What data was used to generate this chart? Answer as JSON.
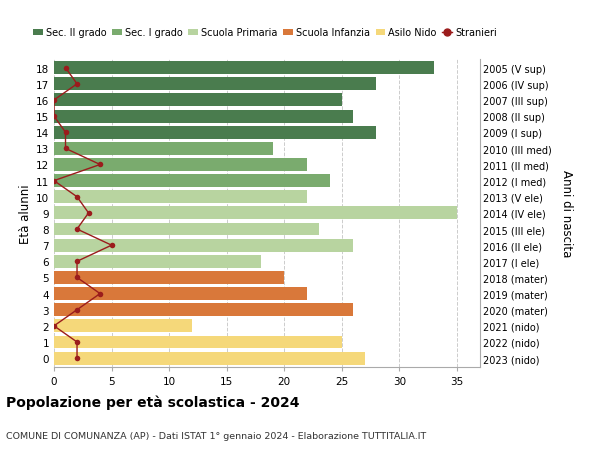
{
  "ages": [
    18,
    17,
    16,
    15,
    14,
    13,
    12,
    11,
    10,
    9,
    8,
    7,
    6,
    5,
    4,
    3,
    2,
    1,
    0
  ],
  "right_labels": [
    "2005 (V sup)",
    "2006 (IV sup)",
    "2007 (III sup)",
    "2008 (II sup)",
    "2009 (I sup)",
    "2010 (III med)",
    "2011 (II med)",
    "2012 (I med)",
    "2013 (V ele)",
    "2014 (IV ele)",
    "2015 (III ele)",
    "2016 (II ele)",
    "2017 (I ele)",
    "2018 (mater)",
    "2019 (mater)",
    "2020 (mater)",
    "2021 (nido)",
    "2022 (nido)",
    "2023 (nido)"
  ],
  "bar_values": [
    33,
    28,
    25,
    26,
    28,
    19,
    22,
    24,
    22,
    35,
    23,
    26,
    18,
    20,
    22,
    26,
    12,
    25,
    27
  ],
  "bar_colors": [
    "#4a7c4e",
    "#4a7c4e",
    "#4a7c4e",
    "#4a7c4e",
    "#4a7c4e",
    "#7aab6e",
    "#7aab6e",
    "#7aab6e",
    "#b8d4a0",
    "#b8d4a0",
    "#b8d4a0",
    "#b8d4a0",
    "#b8d4a0",
    "#d9783a",
    "#d9783a",
    "#d9783a",
    "#f5d87a",
    "#f5d87a",
    "#f5d87a"
  ],
  "stranieri_values": [
    1,
    2,
    0,
    0,
    1,
    1,
    4,
    0,
    2,
    3,
    2,
    5,
    2,
    2,
    4,
    2,
    0,
    2,
    2
  ],
  "legend_labels": [
    "Sec. II grado",
    "Sec. I grado",
    "Scuola Primaria",
    "Scuola Infanzia",
    "Asilo Nido",
    "Stranieri"
  ],
  "legend_colors": [
    "#4a7c4e",
    "#7aab6e",
    "#b8d4a0",
    "#d9783a",
    "#f5d87a",
    "#9b1c1c"
  ],
  "title": "Popolazione per età scolastica - 2024",
  "subtitle": "COMUNE DI COMUNANZA (AP) - Dati ISTAT 1° gennaio 2024 - Elaborazione TUTTITALIA.IT",
  "ylabel": "Età alunni",
  "right_ylabel": "Anni di nascita",
  "xlim": [
    0,
    37
  ],
  "xticks": [
    0,
    5,
    10,
    15,
    20,
    25,
    30,
    35
  ],
  "background_color": "#ffffff",
  "grid_color": "#cccccc",
  "bar_height": 0.8
}
